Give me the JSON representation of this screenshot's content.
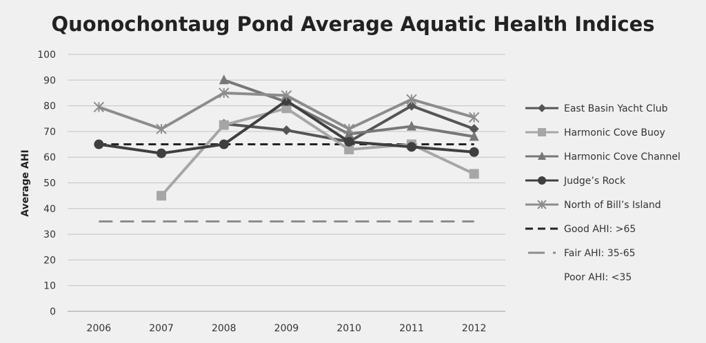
{
  "chart_data": {
    "type": "line",
    "title": "Quonochontaug Pond Average Aquatic Health Indices",
    "xlabel": "",
    "ylabel": "Average AHI",
    "categories": [
      "2006",
      "2007",
      "2008",
      "2009",
      "2010",
      "2011",
      "2012"
    ],
    "ylim": [
      0,
      100
    ],
    "yticks": [
      0,
      10,
      20,
      30,
      40,
      50,
      60,
      70,
      80,
      90,
      100
    ],
    "grid": "horizontal",
    "legend_position": "right",
    "series": [
      {
        "name": "East Basin Yacht Club",
        "marker": "diamond",
        "color": "#555555",
        "values": [
          null,
          null,
          73,
          70.5,
          66,
          80,
          71
        ]
      },
      {
        "name": "Harmonic Cove Buoy",
        "marker": "square",
        "color": "#a6a6a6",
        "values": [
          null,
          45,
          72.5,
          79,
          63,
          65,
          53.5
        ]
      },
      {
        "name": "Harmonic Cove Channel",
        "marker": "triangle",
        "color": "#777777",
        "values": [
          null,
          null,
          90,
          81.5,
          69,
          72,
          68
        ]
      },
      {
        "name": "Judge’s Rock",
        "marker": "circle",
        "color": "#3f3f3f",
        "values": [
          65,
          61.5,
          65,
          82,
          66,
          64,
          62
        ]
      },
      {
        "name": "North of Bill’s Island",
        "marker": "star",
        "color": "#8c8c8c",
        "values": [
          79.5,
          71,
          85,
          84,
          71,
          82.5,
          75.5
        ]
      }
    ],
    "reference_lines": [
      {
        "name": "Good AHI: >65",
        "value": 65,
        "style": "short-dash",
        "color": "#222222"
      },
      {
        "name": "Fair AHI: 35-65",
        "value": 35,
        "style": "long-dash",
        "color": "#8c8c8c"
      }
    ],
    "legend_extra_text": "Poor AHI:  <35"
  }
}
